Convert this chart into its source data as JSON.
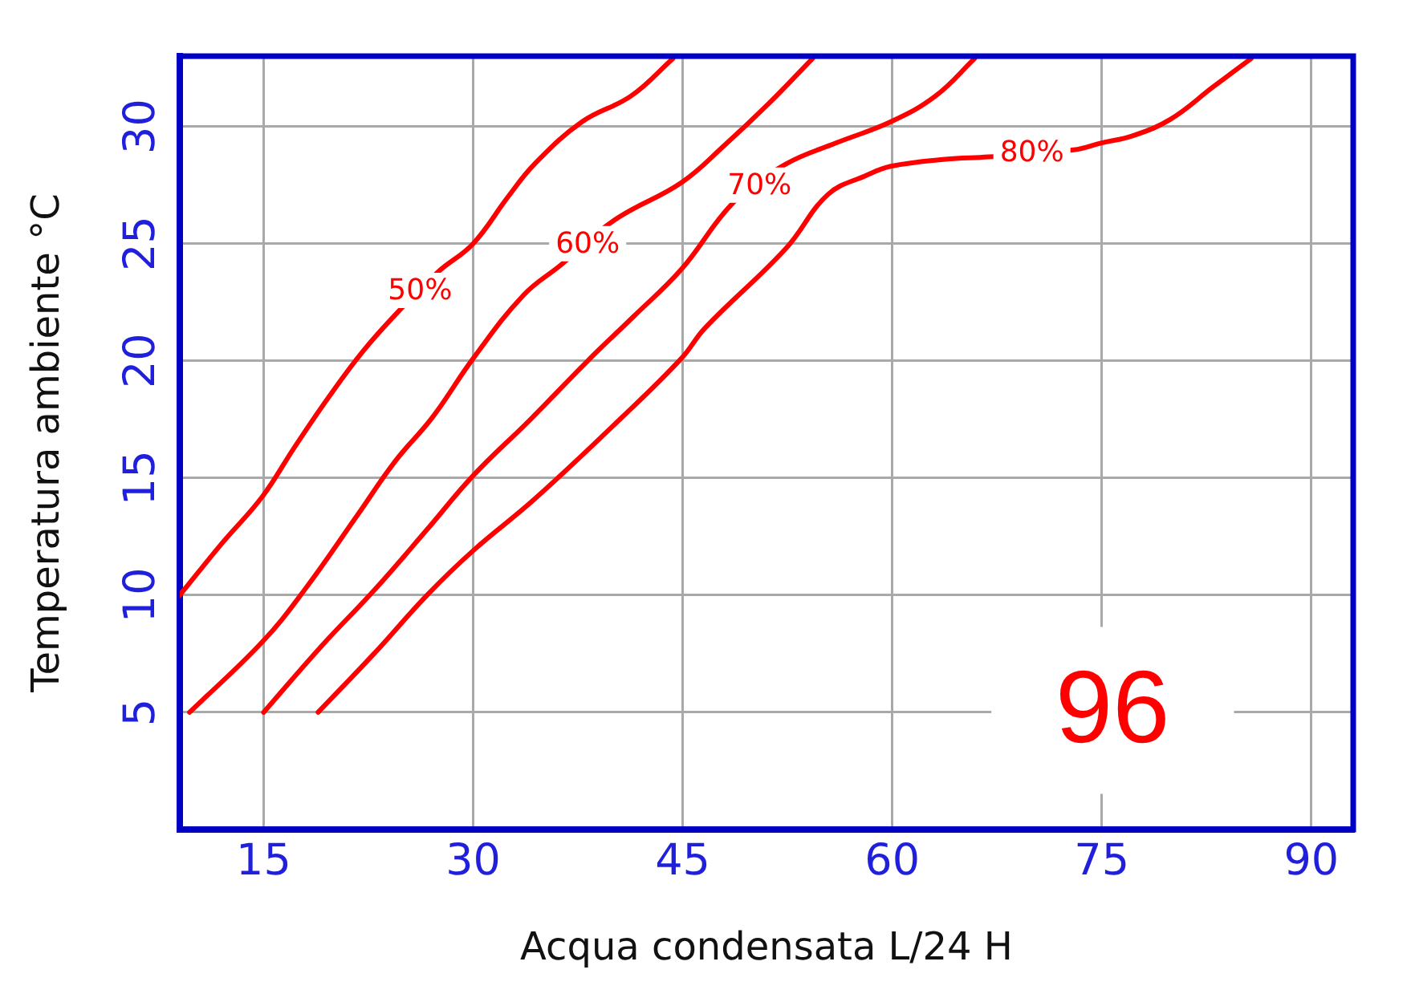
{
  "chart_data": {
    "type": "line",
    "xlabel": "Acqua condensata L/24 H",
    "ylabel": "Temperatura ambiente °C",
    "xlim": [
      9,
      93
    ],
    "xticks": [
      15,
      30,
      45,
      60,
      75,
      90
    ],
    "ylim": [
      0,
      33
    ],
    "yticks": [
      5,
      10,
      15,
      20,
      25,
      30
    ],
    "grid": true,
    "legend": false,
    "marker": "none",
    "line_style": "solid",
    "series": [
      {
        "color": "#ff0000",
        "x": [
          9,
          12,
          14.9,
          17.2,
          19.6,
          22.1,
          24.8,
          27.5,
          30,
          32.5,
          34.4,
          37.8,
          41.3,
          44.3
        ],
        "values": [
          10,
          12.2,
          14.2,
          16.3,
          18.4,
          20.4,
          22.2,
          23.8,
          25.0,
          27.0,
          28.4,
          30.2,
          31.3,
          32.9
        ]
      },
      {
        "color": "#ff0000",
        "x": [
          9.7,
          14.9,
          17.9,
          21.7,
          24.4,
          27.1,
          30,
          33.6,
          36.3,
          40.1,
          44.9,
          48,
          51.2,
          54.3
        ],
        "values": [
          5.0,
          8.0,
          10.2,
          13.4,
          15.7,
          17.6,
          20.1,
          22.8,
          24.1,
          26.0,
          27.6,
          29.2,
          31.0,
          32.9
        ]
      },
      {
        "color": "#ff0000",
        "x": [
          15,
          19.1,
          22.9,
          26.7,
          30,
          34.1,
          38.2,
          41.5,
          44.9,
          48.7,
          52.4,
          56,
          59.9,
          63.1,
          65.9
        ],
        "values": [
          5.0,
          7.8,
          10.2,
          12.8,
          15.1,
          17.5,
          20.0,
          21.9,
          23.9,
          26.8,
          28.4,
          29.3,
          30.2,
          31.3,
          32.9
        ]
      },
      {
        "color": "#ff0000",
        "x": [
          18.9,
          22.9,
          26.7,
          30,
          34.4,
          40.5,
          44.9,
          46.6,
          52.4,
          55.4,
          58.1,
          59.9,
          63.8,
          66.9,
          73,
          75,
          77.2,
          79.9,
          83,
          85.7
        ],
        "values": [
          5.0,
          7.5,
          10.0,
          11.9,
          14.1,
          17.5,
          20.1,
          21.4,
          24.8,
          27.1,
          27.9,
          28.3,
          28.6,
          28.7,
          29.0,
          29.3,
          29.6,
          30.3,
          31.7,
          32.9
        ]
      }
    ],
    "annotations": [
      {
        "text": "50%",
        "x": 26.2,
        "y": 23.0
      },
      {
        "text": "60%",
        "x": 38.2,
        "y": 25.0
      },
      {
        "text": "70%",
        "x": 50.5,
        "y": 27.5
      },
      {
        "text": "80%",
        "x": 70.0,
        "y": 28.9
      },
      "96"
    ]
  }
}
